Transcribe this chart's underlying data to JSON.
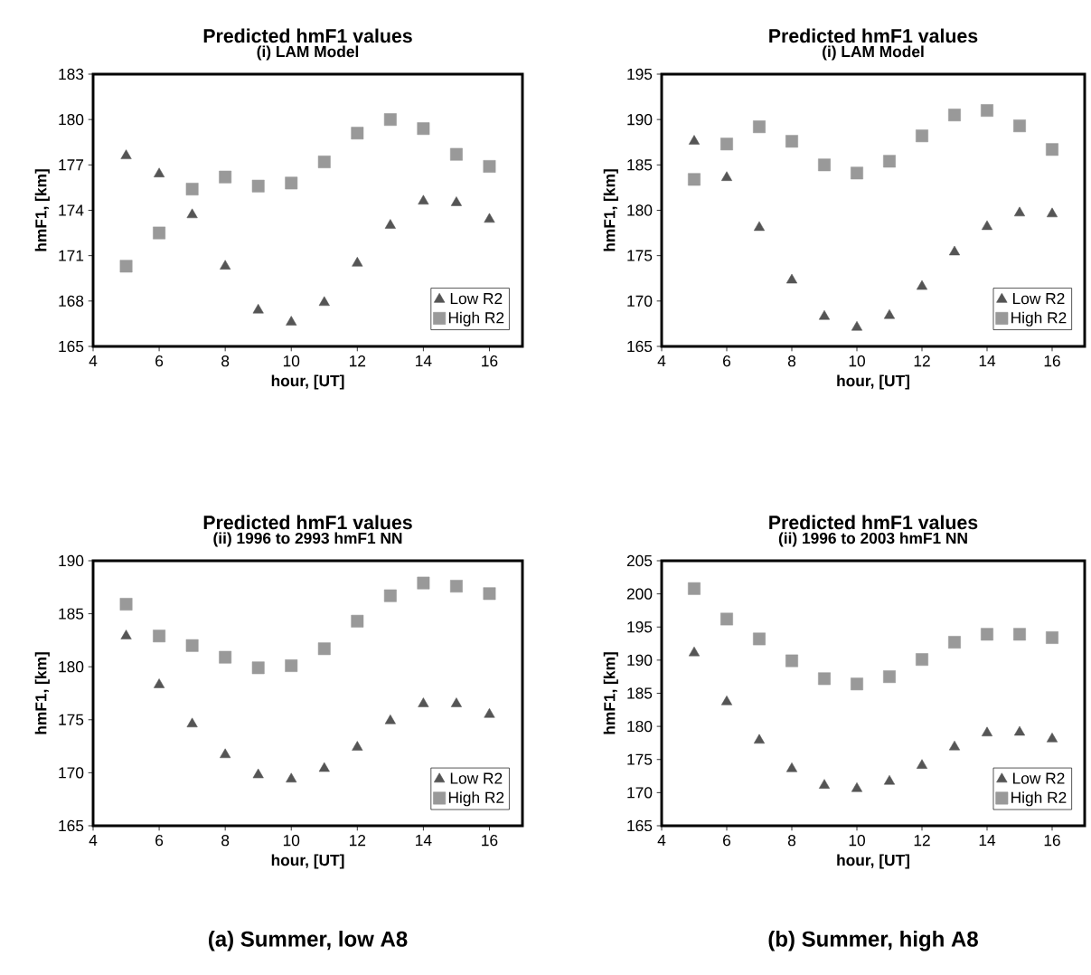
{
  "chart_data": [
    {
      "type": "scatter",
      "title": "Predicted hmF1 values",
      "subtitle": "(i) LAM Model",
      "xlabel": "hour, [UT]",
      "ylabel": "hmF1, [km]",
      "xlim": [
        4,
        17
      ],
      "xticks": [
        4,
        6,
        8,
        10,
        12,
        14,
        16
      ],
      "ylim": [
        165,
        183
      ],
      "yticks": [
        165,
        168,
        171,
        174,
        177,
        180,
        183
      ],
      "legend": "bottom right",
      "grid": false,
      "x": [
        5,
        6,
        7,
        8,
        9,
        10,
        11,
        12,
        13,
        14,
        15,
        16
      ],
      "series": [
        {
          "name": "Low R2",
          "color": "#555555",
          "marker": "triangle",
          "values": [
            177.6,
            176.4,
            173.7,
            170.3,
            167.4,
            166.6,
            167.9,
            170.5,
            173.0,
            174.6,
            174.5,
            173.4
          ]
        },
        {
          "name": "High R2",
          "color": "#999999",
          "marker": "square",
          "values": [
            170.3,
            172.5,
            175.4,
            176.2,
            175.6,
            175.8,
            177.2,
            179.1,
            180.0,
            179.4,
            177.7,
            176.9
          ]
        }
      ]
    },
    {
      "type": "scatter",
      "title": "Predicted hmF1 values",
      "subtitle": "(i) LAM Model",
      "xlabel": "hour, [UT]",
      "ylabel": "hmF1, [km]",
      "xlim": [
        4,
        17
      ],
      "xticks": [
        4,
        6,
        8,
        10,
        12,
        14,
        16
      ],
      "ylim": [
        165,
        195
      ],
      "yticks": [
        165,
        170,
        175,
        180,
        185,
        190,
        195
      ],
      "legend": "bottom right",
      "grid": false,
      "x": [
        5,
        6,
        7,
        8,
        9,
        10,
        11,
        12,
        13,
        14,
        15,
        16
      ],
      "series": [
        {
          "name": "Low R2",
          "color": "#555555",
          "marker": "triangle",
          "values": [
            187.6,
            183.6,
            178.1,
            172.3,
            168.3,
            167.1,
            168.4,
            171.6,
            175.4,
            178.2,
            179.7,
            179.6
          ]
        },
        {
          "name": "High R2",
          "color": "#999999",
          "marker": "square",
          "values": [
            183.4,
            187.3,
            189.2,
            187.6,
            185.0,
            184.1,
            185.4,
            188.2,
            190.5,
            191.0,
            189.3,
            186.7
          ]
        }
      ]
    },
    {
      "type": "scatter",
      "title": "Predicted hmF1 values",
      "subtitle": "(ii) 1996 to 2993 hmF1 NN",
      "xlabel": "hour, [UT]",
      "ylabel": "hmF1, [km]",
      "xlim": [
        4,
        17
      ],
      "xticks": [
        4,
        6,
        8,
        10,
        12,
        14,
        16
      ],
      "ylim": [
        165,
        190
      ],
      "yticks": [
        165,
        170,
        175,
        180,
        185,
        190
      ],
      "legend": "bottom right",
      "grid": false,
      "annotations": [
        "(a) Summer, low A8"
      ],
      "x": [
        5,
        6,
        7,
        8,
        9,
        10,
        11,
        12,
        13,
        14,
        15,
        16
      ],
      "series": [
        {
          "name": "Low R2",
          "color": "#555555",
          "marker": "triangle",
          "values": [
            182.9,
            178.3,
            174.6,
            171.7,
            169.8,
            169.4,
            170.4,
            172.4,
            174.9,
            176.5,
            176.5,
            175.5
          ]
        },
        {
          "name": "High R2",
          "color": "#999999",
          "marker": "square",
          "values": [
            185.9,
            182.9,
            182.0,
            180.9,
            179.9,
            180.1,
            181.7,
            184.3,
            186.7,
            187.9,
            187.6,
            186.9
          ]
        }
      ]
    },
    {
      "type": "scatter",
      "title": "Predicted hmF1 values",
      "subtitle": "(ii) 1996 to 2003 hmF1 NN",
      "xlabel": "hour, [UT]",
      "ylabel": "hmF1, [km]",
      "xlim": [
        4,
        17
      ],
      "xticks": [
        4,
        6,
        8,
        10,
        12,
        14,
        16
      ],
      "ylim": [
        165,
        205
      ],
      "yticks": [
        165,
        170,
        175,
        180,
        185,
        190,
        195,
        200,
        205
      ],
      "legend": "bottom right",
      "grid": false,
      "annotations": [
        "(b) Summer, high A8"
      ],
      "x": [
        5,
        6,
        7,
        8,
        9,
        10,
        11,
        12,
        13,
        14,
        15,
        16
      ],
      "series": [
        {
          "name": "Low R2",
          "color": "#555555",
          "marker": "triangle",
          "values": [
            191.1,
            183.7,
            177.9,
            173.6,
            171.1,
            170.6,
            171.7,
            174.1,
            176.9,
            179.0,
            179.1,
            178.1
          ]
        },
        {
          "name": "High R2",
          "color": "#999999",
          "marker": "square",
          "values": [
            200.8,
            196.2,
            193.2,
            189.9,
            187.2,
            186.4,
            187.5,
            190.1,
            192.7,
            193.9,
            193.9,
            193.4
          ]
        }
      ]
    }
  ]
}
